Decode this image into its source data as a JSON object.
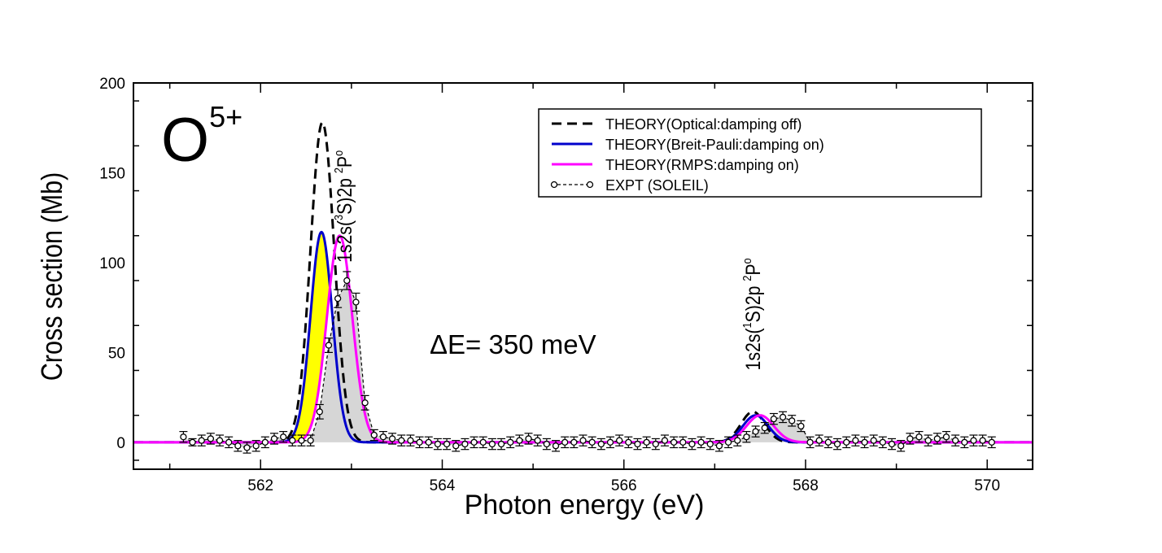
{
  "chart_data": {
    "type": "line",
    "xlabel": "Photon energy (eV)",
    "ylabel": "Cross section (Mb)",
    "xlim": [
      560.6,
      570.5
    ],
    "ylim": [
      -15,
      200
    ],
    "x_ticks": [
      562,
      564,
      566,
      568,
      570
    ],
    "y_ticks": [
      0,
      50,
      100,
      150,
      200
    ],
    "ion_label": {
      "base": "O",
      "charge": "5+"
    },
    "resolution_label": "ΔE= 350 meV",
    "peak_labels": [
      {
        "pre": "1s2s(",
        "sup1": "3",
        "mid": "S)2p ",
        "sup2": "2",
        "post": "P",
        "sup3": "o",
        "x": 563.0,
        "y": 100
      },
      {
        "pre": "1s2s(",
        "sup1": "1",
        "mid": "S)2p ",
        "sup2": "2",
        "post": "P",
        "sup3": "o",
        "x": 567.5,
        "y": 40
      }
    ],
    "legend_position": "top-right",
    "series": [
      {
        "name": "THEORY(Optical:damping off)",
        "color": "#000000",
        "style": "dashed",
        "peaks": [
          {
            "center": 562.68,
            "height": 178,
            "sigma": 0.13
          },
          {
            "center": 567.42,
            "height": 17,
            "sigma": 0.13
          }
        ]
      },
      {
        "name": "THEORY(Breit-Pauli:damping on)",
        "color": "#0000cc",
        "style": "solid",
        "peaks": [
          {
            "center": 562.67,
            "height": 117,
            "sigma": 0.12
          },
          {
            "center": 567.45,
            "height": 15,
            "sigma": 0.14
          }
        ]
      },
      {
        "name": "THEORY(RMPS:damping on)",
        "color": "#ff00ff",
        "style": "solid",
        "peaks": [
          {
            "center": 562.87,
            "height": 115,
            "sigma": 0.14
          },
          {
            "center": 567.5,
            "height": 15,
            "sigma": 0.15
          }
        ]
      },
      {
        "name": "EXPT (SOLEIL)",
        "color": "#000000",
        "style": "dashed-markers",
        "x": [
          561.15,
          561.25,
          561.35,
          561.45,
          561.55,
          561.65,
          561.75,
          561.85,
          561.95,
          562.05,
          562.15,
          562.25,
          562.35,
          562.45,
          562.55,
          562.65,
          562.75,
          562.85,
          562.95,
          563.05,
          563.15,
          563.25,
          563.35,
          563.45,
          563.55,
          563.65,
          563.75,
          563.85,
          563.95,
          564.05,
          564.15,
          564.25,
          564.35,
          564.45,
          564.55,
          564.65,
          564.75,
          564.85,
          564.95,
          565.05,
          565.15,
          565.25,
          565.35,
          565.45,
          565.55,
          565.65,
          565.75,
          565.85,
          565.95,
          566.05,
          566.15,
          566.25,
          566.35,
          566.45,
          566.55,
          566.65,
          566.75,
          566.85,
          566.95,
          567.05,
          567.15,
          567.25,
          567.35,
          567.45,
          567.55,
          567.65,
          567.75,
          567.85,
          567.95,
          568.05,
          568.15,
          568.25,
          568.35,
          568.45,
          568.55,
          568.65,
          568.75,
          568.85,
          568.95,
          569.05,
          569.15,
          569.25,
          569.35,
          569.45,
          569.55,
          569.65,
          569.75,
          569.85,
          569.95,
          570.05
        ],
        "y": [
          3,
          0,
          1,
          2,
          1,
          0,
          -2,
          -3,
          -2,
          0,
          2,
          3,
          1,
          1,
          1,
          17,
          54,
          80,
          90,
          78,
          22,
          4,
          3,
          2,
          1,
          1,
          0,
          0,
          -1,
          -1,
          -2,
          -1,
          0,
          0,
          -1,
          -1,
          0,
          1,
          2,
          1,
          -1,
          -2,
          0,
          0,
          1,
          0,
          -1,
          0,
          1,
          0,
          -1,
          0,
          -1,
          1,
          0,
          0,
          -1,
          0,
          -1,
          -2,
          0,
          1,
          3,
          6,
          8,
          13,
          14,
          12,
          9,
          0,
          1,
          0,
          -1,
          0,
          1,
          0,
          1,
          0,
          -1,
          -2,
          2,
          3,
          1,
          2,
          3,
          1,
          0,
          1,
          1,
          0
        ],
        "err": [
          3,
          2,
          3,
          3,
          3,
          3,
          3,
          3,
          3,
          3,
          3,
          3,
          3,
          3,
          3,
          4,
          4,
          5,
          5,
          5,
          4,
          3,
          3,
          3,
          3,
          3,
          3,
          3,
          3,
          3,
          3,
          3,
          3,
          3,
          3,
          3,
          3,
          3,
          3,
          3,
          3,
          3,
          3,
          3,
          3,
          3,
          3,
          3,
          3,
          3,
          3,
          3,
          3,
          3,
          3,
          3,
          3,
          3,
          3,
          3,
          3,
          3,
          3,
          3,
          3,
          3,
          3,
          3,
          3,
          3,
          3,
          3,
          3,
          3,
          3,
          3,
          3,
          3,
          3,
          3,
          3,
          3,
          3,
          3,
          3,
          3,
          3,
          3,
          3,
          3
        ]
      }
    ]
  }
}
